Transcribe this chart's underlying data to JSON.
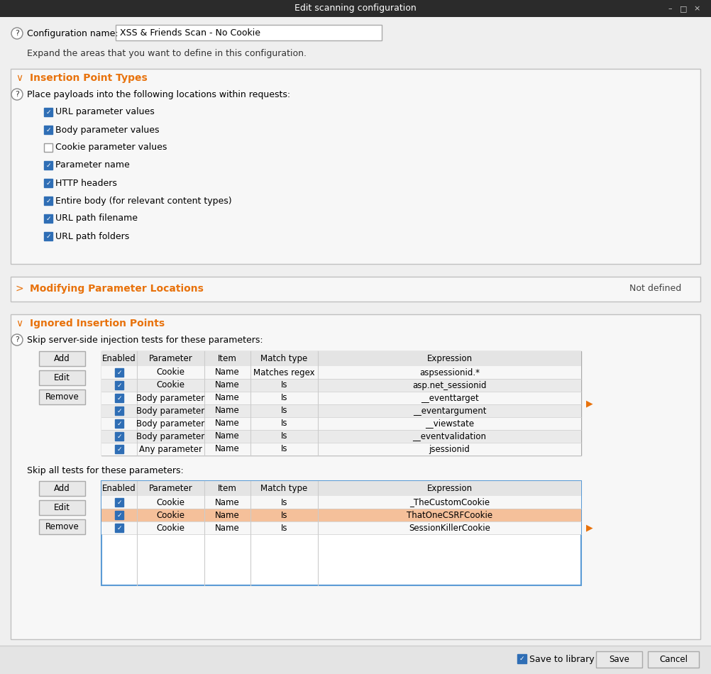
{
  "title": "Edit scanning configuration",
  "title_bar_bg": "#2b2b2b",
  "title_bar_text_color": "#ffffff",
  "config_name": "XSS & Friends Scan - No Cookie",
  "expand_text": "Expand the areas that you want to define in this configuration.",
  "bg_color": "#efefef",
  "panel_bg": "#f7f7f7",
  "panel_border": "#c0c0c0",
  "orange_color": "#e8720c",
  "section1_title": "Insertion Point Types",
  "section1_subtitle": "Place payloads into the following locations within requests:",
  "checkboxes": [
    {
      "label": "URL parameter values",
      "checked": true
    },
    {
      "label": "Body parameter values",
      "checked": true
    },
    {
      "label": "Cookie parameter values",
      "checked": false
    },
    {
      "label": "Parameter name",
      "checked": true
    },
    {
      "label": "HTTP headers",
      "checked": true
    },
    {
      "label": "Entire body (for relevant content types)",
      "checked": true
    },
    {
      "label": "URL path filename",
      "checked": true
    },
    {
      "label": "URL path folders",
      "checked": true
    }
  ],
  "section2_title": "Modifying Parameter Locations",
  "section2_status": "Not defined",
  "section3_title": "Ignored Insertion Points",
  "section3_subtitle": "Skip server-side injection tests for these parameters:",
  "table1_headers": [
    "Enabled",
    "Parameter",
    "Item",
    "Match type",
    "Expression"
  ],
  "table1_rows": [
    [
      true,
      "Cookie",
      "Name",
      "Matches regex",
      "aspsessionid.*"
    ],
    [
      true,
      "Cookie",
      "Name",
      "Is",
      "asp.net_sessionid"
    ],
    [
      true,
      "Body parameter",
      "Name",
      "Is",
      "__eventtarget"
    ],
    [
      true,
      "Body parameter",
      "Name",
      "Is",
      "__eventargument"
    ],
    [
      true,
      "Body parameter",
      "Name",
      "Is",
      "__viewstate"
    ],
    [
      true,
      "Body parameter",
      "Name",
      "Is",
      "__eventvalidation"
    ],
    [
      true,
      "Any parameter",
      "Name",
      "Is",
      "jsessionid"
    ]
  ],
  "section3_subtitle2": "Skip all tests for these parameters:",
  "table2_headers": [
    "Enabled",
    "Parameter",
    "Item",
    "Match type",
    "Expression"
  ],
  "table2_rows": [
    [
      true,
      "Cookie",
      "Name",
      "Is",
      "_TheCustomCookie"
    ],
    [
      true,
      "Cookie",
      "Name",
      "Is",
      "ThatOneCSRFCookie"
    ],
    [
      true,
      "Cookie",
      "Name",
      "Is",
      "SessionKillerCookie"
    ]
  ],
  "table2_selected_row": 1,
  "selected_row_bg": "#f5c09a",
  "checkbox_checked_color": "#2f6eb5",
  "checkbox_border_color": "#999999",
  "table_header_bg": "#e4e4e4",
  "table_row_alt_bg": "#eaeaea",
  "table_row_bg": "#f7f7f7",
  "button_bg": "#e8e8e8",
  "button_border": "#aaaaaa",
  "bottom_bar_bg": "#e4e4e4",
  "table2_border_color": "#5b9bd5"
}
